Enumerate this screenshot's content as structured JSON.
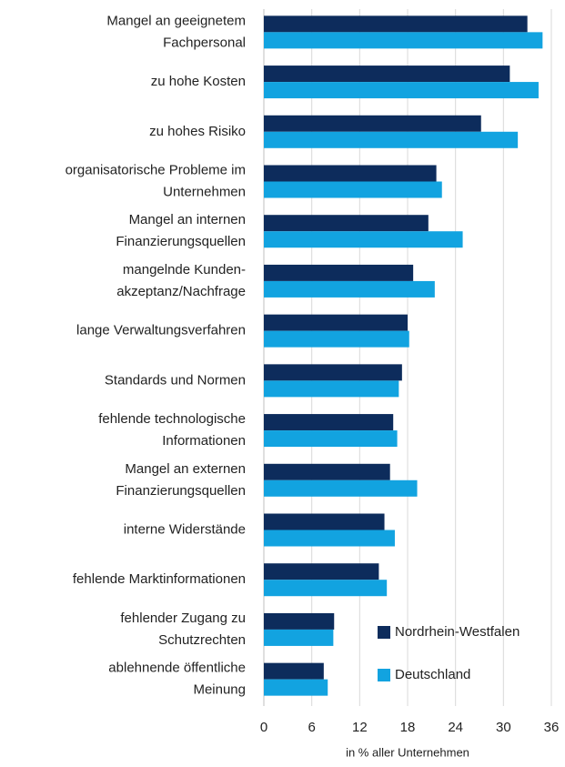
{
  "chart_data": {
    "type": "hbar",
    "categories": [
      "Mangel an geeignetem\nFachpersonal",
      "zu hohe Kosten",
      "zu hohes Risiko",
      "organisatorische Probleme im\nUnternehmen",
      "Mangel an internen\nFinanzierungsquellen",
      "mangelnde Kunden-\nakzeptanz/Nachfrage",
      "lange Verwaltungsverfahren",
      "Standards und Normen",
      "fehlende technologische\nInformationen",
      "Mangel an externen\nFinanzierungsquellen",
      "interne Widerstände",
      "fehlende Marktinformationen",
      "fehlender Zugang zu\nSchutzrechten",
      "ablehnende öffentliche\nMeinung"
    ],
    "series": [
      {
        "name": "Nordrhein-Westfalen",
        "color": "#0d2c5c",
        "values": [
          33.0,
          30.8,
          27.2,
          21.6,
          20.6,
          18.7,
          18.0,
          17.3,
          16.2,
          15.8,
          15.1,
          14.4,
          8.8,
          7.5
        ]
      },
      {
        "name": "Deutschland",
        "color": "#12a3e0",
        "values": [
          34.9,
          34.4,
          31.8,
          22.3,
          24.9,
          21.4,
          18.2,
          16.9,
          16.7,
          19.2,
          16.4,
          15.4,
          8.7,
          8.0
        ]
      }
    ],
    "xlabel": "in % aller Unternehmen",
    "xlim": [
      0,
      36
    ],
    "xticks": [
      0,
      6,
      12,
      18,
      24,
      30,
      36
    ],
    "grid": true,
    "legend": "lower right"
  }
}
